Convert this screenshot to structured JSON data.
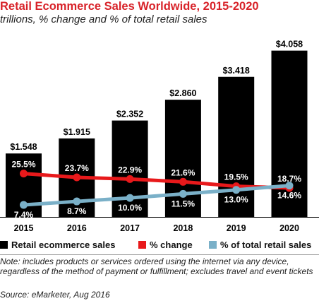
{
  "chart_data": {
    "type": "bar",
    "title": "Retail Ecommerce Sales Worldwide, 2015-2020",
    "subtitle": "trillions, % change and % of total retail sales",
    "categories": [
      "2015",
      "2016",
      "2017",
      "2018",
      "2019",
      "2020"
    ],
    "series": [
      {
        "name": "Retail ecommerce sales",
        "type": "bar",
        "values": [
          1.548,
          1.915,
          2.352,
          2.86,
          3.418,
          4.058
        ],
        "labels": [
          "$1.548",
          "$1.915",
          "$2.352",
          "$2.860",
          "$3.418",
          "$4.058"
        ],
        "color": "#000000"
      },
      {
        "name": "% change",
        "type": "line",
        "values": [
          25.5,
          23.7,
          22.9,
          21.6,
          19.5,
          18.7
        ],
        "labels": [
          "25.5%",
          "23.7%",
          "22.9%",
          "21.6%",
          "19.5%",
          "18.7%"
        ],
        "color": "#e8191b"
      },
      {
        "name": "% of total retail sales",
        "type": "line",
        "values": [
          7.4,
          8.7,
          10.0,
          11.5,
          13.0,
          14.6
        ],
        "labels": [
          "7.4%",
          "8.7%",
          "10.0%",
          "11.5%",
          "13.0%",
          "14.6%"
        ],
        "color": "#7ab0c8"
      }
    ],
    "legend_position": "bottom",
    "grid": false
  },
  "note": "Note: includes products or services ordered using the internet via any device, regardless of the method of payment or fulfillment; excludes travel and event tickets",
  "source": "Source: eMarketer, Aug 2016"
}
